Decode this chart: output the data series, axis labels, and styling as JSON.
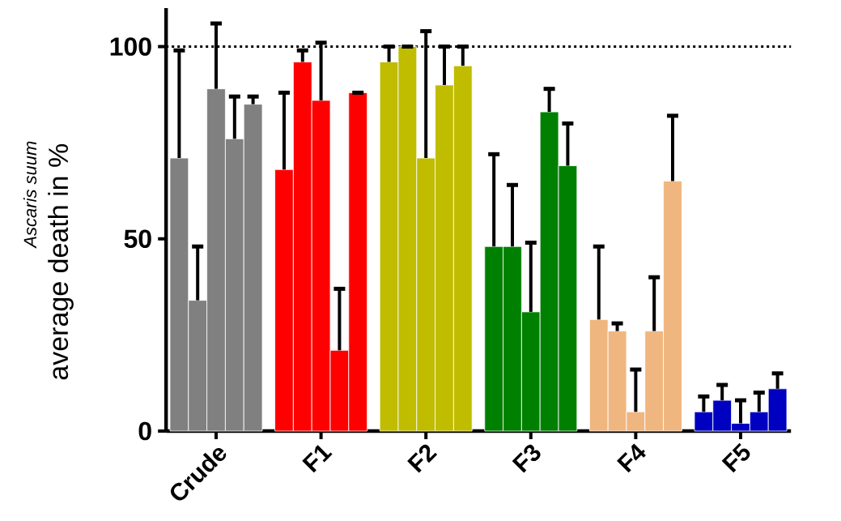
{
  "chart_data": {
    "type": "bar",
    "ylabel": "average death in %",
    "annotations": [
      "Ascaris suum"
    ],
    "categories": [
      "Crude",
      "F1",
      "F2",
      "F3",
      "F4",
      "F5"
    ],
    "series": [
      {
        "colors": [
          "#808080",
          "#ff0000",
          "#c0bc00",
          "#008000",
          "#f0b67f",
          "#0000c0"
        ],
        "values": [
          71,
          68,
          96,
          48,
          29,
          5
        ],
        "errors": [
          [
            71,
            99
          ],
          [
            68,
            88
          ],
          [
            96,
            100
          ],
          [
            48,
            72
          ],
          [
            29,
            48
          ],
          [
            5,
            9
          ]
        ]
      },
      {
        "colors": [
          "#808080",
          "#ff0000",
          "#c0bc00",
          "#008000",
          "#f0b67f",
          "#0000c0"
        ],
        "values": [
          34,
          96,
          100,
          48,
          26,
          8
        ],
        "errors": [
          [
            34,
            48
          ],
          [
            96,
            99
          ],
          [
            100,
            100
          ],
          [
            48,
            64
          ],
          [
            26,
            28
          ],
          [
            8,
            12
          ]
        ]
      },
      {
        "colors": [
          "#808080",
          "#ff0000",
          "#c0bc00",
          "#008000",
          "#f0b67f",
          "#0000c0"
        ],
        "values": [
          89,
          86,
          71,
          31,
          5,
          2
        ],
        "errors": [
          [
            89,
            106
          ],
          [
            86,
            101
          ],
          [
            71,
            104
          ],
          [
            31,
            49
          ],
          [
            5,
            16
          ],
          [
            2,
            8
          ]
        ]
      },
      {
        "colors": [
          "#808080",
          "#ff0000",
          "#c0bc00",
          "#008000",
          "#f0b67f",
          "#0000c0"
        ],
        "values": [
          76,
          21,
          90,
          83,
          26,
          5
        ],
        "errors": [
          [
            76,
            87
          ],
          [
            21,
            37
          ],
          [
            90,
            100
          ],
          [
            83,
            89
          ],
          [
            26,
            40
          ],
          [
            5,
            10
          ]
        ]
      },
      {
        "colors": [
          "#808080",
          "#ff0000",
          "#c0bc00",
          "#008000",
          "#f0b67f",
          "#0000c0"
        ],
        "values": [
          85,
          88,
          95,
          69,
          65,
          11
        ],
        "errors": [
          [
            85,
            87
          ],
          [
            88,
            88
          ],
          [
            95,
            100
          ],
          [
            69,
            80
          ],
          [
            65,
            82
          ],
          [
            11,
            15
          ]
        ]
      }
    ],
    "ylim": [
      0,
      110
    ],
    "yticks": [
      0,
      50,
      100
    ],
    "ref_lines": [
      {
        "axis": "y",
        "value": 100,
        "line_style": "dotted",
        "color": "#000000"
      }
    ]
  }
}
